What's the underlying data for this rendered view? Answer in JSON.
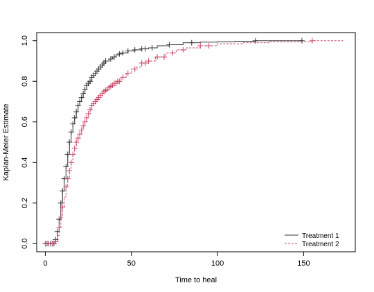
{
  "chart_data": {
    "type": "line",
    "xlabel": "Time to heal",
    "ylabel": "Kaplan-Meier Estimate",
    "xlim": [
      -5,
      180
    ],
    "ylim": [
      -0.04,
      1.04
    ],
    "xticks": [
      0,
      50,
      100,
      150
    ],
    "yticks": [
      0.0,
      0.2,
      0.4,
      0.6,
      0.8,
      1.0
    ],
    "grid": false,
    "legend_position": "bottom-right",
    "series": [
      {
        "name": "Treatment 1",
        "color": "#333333",
        "line_style": "solid",
        "x": [
          0,
          4,
          6,
          7,
          8,
          9,
          10,
          11,
          12,
          13,
          14,
          15,
          16,
          17,
          18,
          19,
          20,
          21,
          22,
          23,
          24,
          25,
          26,
          27,
          28,
          29,
          30,
          31,
          32,
          33,
          34,
          35,
          37,
          39,
          41,
          43,
          45,
          48,
          52,
          56,
          60,
          65,
          72,
          80,
          90,
          100,
          110,
          122,
          135,
          149
        ],
        "y": [
          0.0,
          0.0,
          0.02,
          0.06,
          0.12,
          0.2,
          0.26,
          0.32,
          0.38,
          0.44,
          0.5,
          0.55,
          0.59,
          0.62,
          0.65,
          0.68,
          0.7,
          0.72,
          0.74,
          0.76,
          0.78,
          0.79,
          0.8,
          0.82,
          0.83,
          0.84,
          0.85,
          0.86,
          0.87,
          0.88,
          0.89,
          0.9,
          0.91,
          0.92,
          0.93,
          0.935,
          0.94,
          0.95,
          0.955,
          0.96,
          0.965,
          0.975,
          0.98,
          0.99,
          0.993,
          0.995,
          0.997,
          1.0,
          1.0,
          1.0
        ],
        "censored_x": [
          0,
          1,
          2,
          3,
          4,
          5,
          6,
          7,
          8,
          9,
          10,
          11,
          12,
          13,
          14,
          15,
          16,
          17,
          18,
          19,
          20,
          21,
          22,
          23,
          24,
          25,
          26,
          27,
          28,
          29,
          30,
          31,
          32,
          33,
          34,
          35,
          38,
          40,
          43,
          45,
          48,
          52,
          56,
          58,
          62,
          72,
          85,
          122,
          149
        ]
      },
      {
        "name": "Treatment 2",
        "color": "#cc4466",
        "line_style": "dashed",
        "x": [
          0,
          5,
          6,
          7,
          8,
          9,
          10,
          11,
          12,
          13,
          14,
          15,
          16,
          17,
          18,
          19,
          20,
          21,
          22,
          23,
          24,
          25,
          26,
          27,
          28,
          29,
          30,
          31,
          32,
          33,
          34,
          35,
          36,
          37,
          38,
          39,
          40,
          42,
          44,
          47,
          50,
          53,
          56,
          60,
          64,
          70,
          76,
          82,
          90,
          100,
          115,
          130,
          155,
          173
        ],
        "y": [
          0.0,
          0.0,
          0.01,
          0.04,
          0.08,
          0.13,
          0.18,
          0.23,
          0.28,
          0.32,
          0.36,
          0.4,
          0.44,
          0.47,
          0.5,
          0.52,
          0.54,
          0.56,
          0.58,
          0.6,
          0.62,
          0.64,
          0.66,
          0.68,
          0.69,
          0.7,
          0.71,
          0.72,
          0.73,
          0.74,
          0.75,
          0.755,
          0.76,
          0.77,
          0.775,
          0.78,
          0.79,
          0.8,
          0.82,
          0.84,
          0.86,
          0.87,
          0.89,
          0.9,
          0.92,
          0.94,
          0.955,
          0.965,
          0.975,
          0.985,
          0.99,
          0.995,
          1.0,
          1.0
        ],
        "censored_x": [
          0,
          2,
          4,
          6,
          8,
          10,
          12,
          13,
          14,
          15,
          16,
          17,
          18,
          19,
          20,
          21,
          22,
          23,
          24,
          25,
          26,
          27,
          28,
          29,
          30,
          31,
          32,
          33,
          34,
          35,
          36,
          37,
          38,
          39,
          40,
          41,
          42,
          43,
          45,
          48,
          52,
          56,
          58,
          60,
          65,
          69,
          74,
          80,
          90,
          95,
          155
        ]
      }
    ]
  }
}
